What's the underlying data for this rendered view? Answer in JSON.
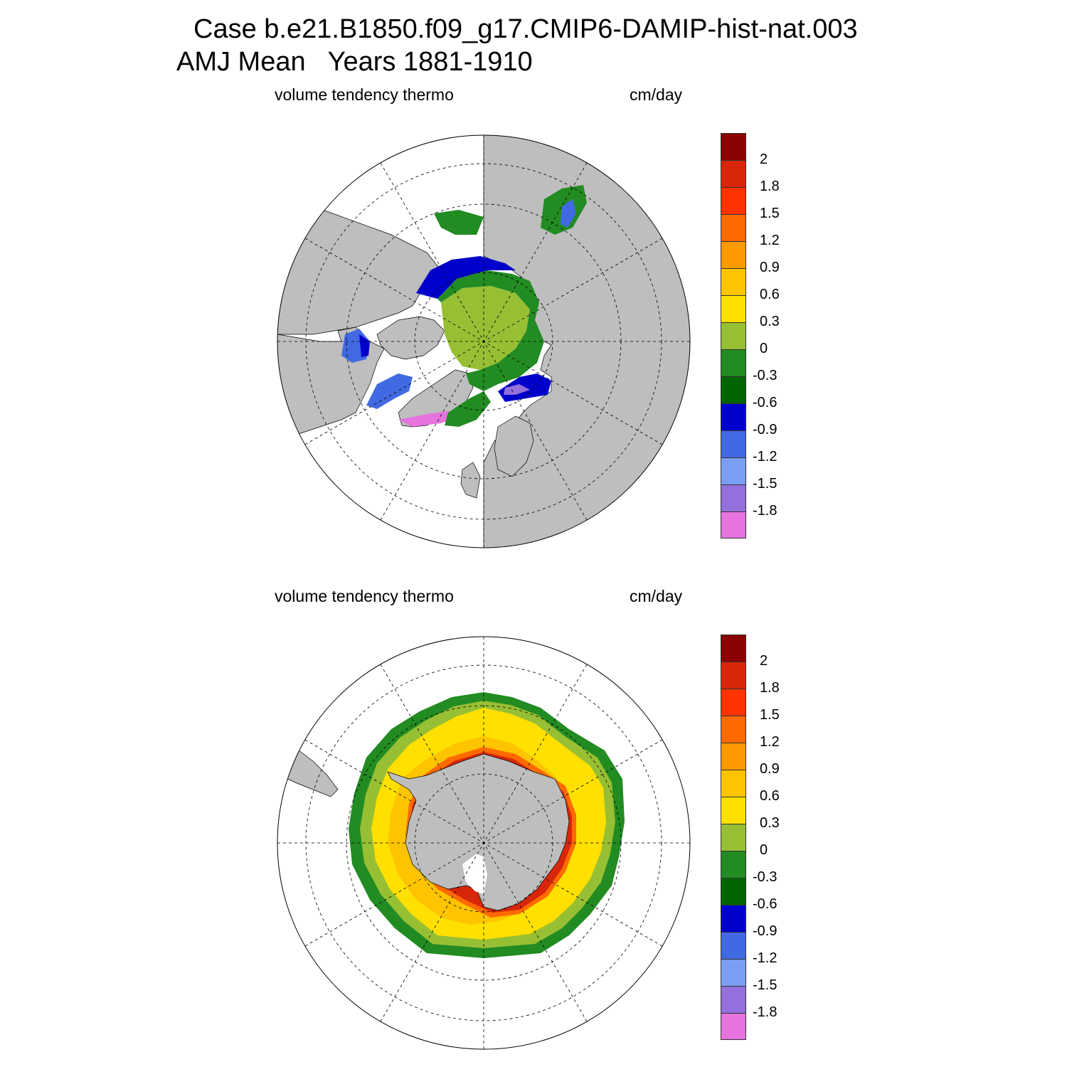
{
  "header": {
    "title_line1": "Case b.e21.B1850.f09_g17.CMIP6-DAMIP-hist-nat.003",
    "title_line2": "AMJ Mean   Years 1881-1910"
  },
  "panels": [
    {
      "hemisphere": "north",
      "left_label": "volume tendency thermo",
      "right_label": "cm/day"
    },
    {
      "hemisphere": "south",
      "left_label": "volume tendency thermo",
      "right_label": "cm/day"
    }
  ],
  "colorbar": {
    "colors": [
      "#8b0000",
      "#d7260a",
      "#ff3300",
      "#ff6a00",
      "#ff9900",
      "#ffc400",
      "#ffe000",
      "#97bf34",
      "#228b22",
      "#006400",
      "#0000cd",
      "#4169e1",
      "#7a9ef2",
      "#9370db",
      "#e673de"
    ],
    "ticks": [
      "2",
      "1.8",
      "1.5",
      "1.2",
      "0.9",
      "0.6",
      "0.3",
      "0",
      "-0.3",
      "-0.6",
      "-0.9",
      "-1.2",
      "-1.5",
      "-1.8"
    ]
  },
  "map_colors": {
    "land": "#bebebe",
    "ocean": "#ffffff"
  }
}
